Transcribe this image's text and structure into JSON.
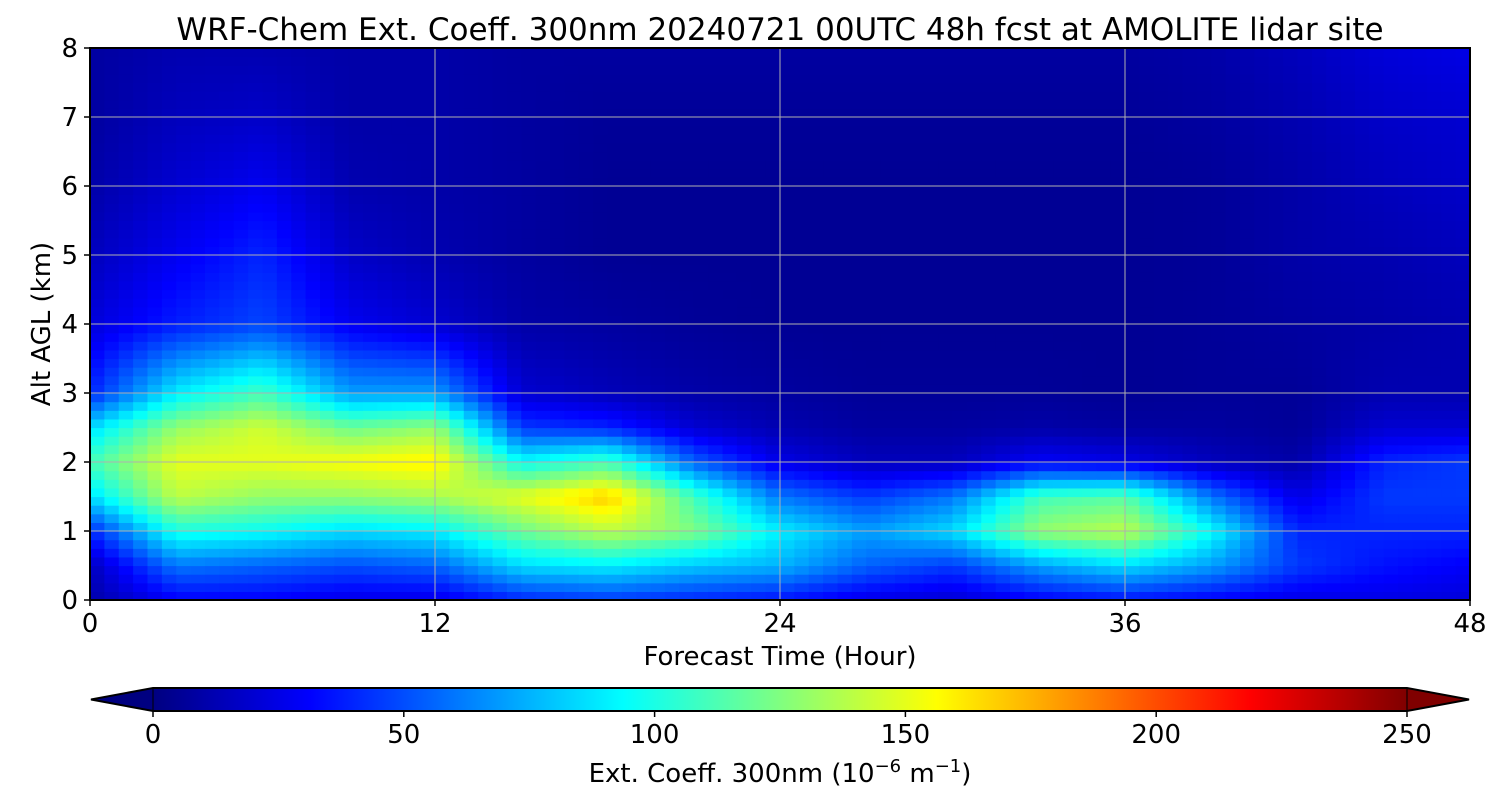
{
  "chart_data": {
    "type": "heatmap",
    "title": "WRF-Chem Ext. Coeff. 300nm  20240721 00UTC 48h fcst at AMOLITE lidar site",
    "xlabel": "Forecast Time (Hour)",
    "ylabel": "Alt AGL (km)",
    "xlim": [
      0,
      48
    ],
    "ylim": [
      0,
      8
    ],
    "x_ticks": [
      0,
      12,
      24,
      36,
      48
    ],
    "y_ticks": [
      0,
      1,
      2,
      3,
      4,
      5,
      6,
      7,
      8
    ],
    "grid": true,
    "colorbar": {
      "label_main": "Ext. Coeff. 300nm  (10",
      "label_exp1": "−6",
      "label_mid": " m",
      "label_exp2": "−1",
      "label_end": ")",
      "range": [
        0,
        250
      ],
      "ticks": [
        0,
        50,
        100,
        150,
        200,
        250
      ],
      "extend": "both",
      "colormap": "jet"
    },
    "x_hours": [
      0,
      3,
      6,
      9,
      12,
      15,
      18,
      21,
      24,
      27,
      30,
      33,
      36,
      39,
      42,
      45,
      48
    ],
    "z_altitudes_km": [
      0,
      0.5,
      1,
      1.5,
      2,
      2.5,
      3,
      4,
      5,
      6,
      7,
      8
    ],
    "values": [
      [
        10,
        15,
        40,
        85,
        110,
        85,
        40,
        22,
        15,
        10,
        8,
        8
      ],
      [
        30,
        60,
        100,
        140,
        150,
        130,
        90,
        38,
        28,
        20,
        15,
        12
      ],
      [
        30,
        55,
        95,
        130,
        150,
        145,
        110,
        48,
        40,
        28,
        18,
        12
      ],
      [
        25,
        50,
        85,
        130,
        155,
        120,
        70,
        28,
        18,
        12,
        10,
        10
      ],
      [
        25,
        55,
        90,
        135,
        160,
        130,
        70,
        20,
        12,
        10,
        10,
        10
      ],
      [
        40,
        85,
        120,
        150,
        95,
        45,
        20,
        10,
        8,
        8,
        8,
        8
      ],
      [
        45,
        90,
        140,
        170,
        110,
        40,
        14,
        8,
        5,
        5,
        6,
        8
      ],
      [
        40,
        80,
        125,
        110,
        55,
        20,
        10,
        6,
        5,
        5,
        6,
        8
      ],
      [
        35,
        75,
        90,
        60,
        25,
        12,
        8,
        5,
        5,
        5,
        6,
        8
      ],
      [
        25,
        55,
        70,
        45,
        15,
        8,
        6,
        5,
        5,
        5,
        6,
        8
      ],
      [
        20,
        45,
        85,
        60,
        15,
        8,
        6,
        5,
        5,
        5,
        6,
        8
      ],
      [
        30,
        70,
        130,
        110,
        30,
        10,
        6,
        5,
        5,
        5,
        6,
        8
      ],
      [
        35,
        85,
        140,
        115,
        25,
        8,
        5,
        5,
        5,
        5,
        6,
        8
      ],
      [
        30,
        70,
        95,
        60,
        15,
        8,
        6,
        6,
        6,
        6,
        8,
        10
      ],
      [
        25,
        45,
        40,
        25,
        10,
        6,
        6,
        8,
        10,
        10,
        12,
        15
      ],
      [
        25,
        35,
        40,
        45,
        40,
        20,
        12,
        10,
        12,
        15,
        18,
        22
      ],
      [
        22,
        30,
        40,
        45,
        45,
        20,
        12,
        12,
        15,
        18,
        20,
        25
      ]
    ]
  }
}
